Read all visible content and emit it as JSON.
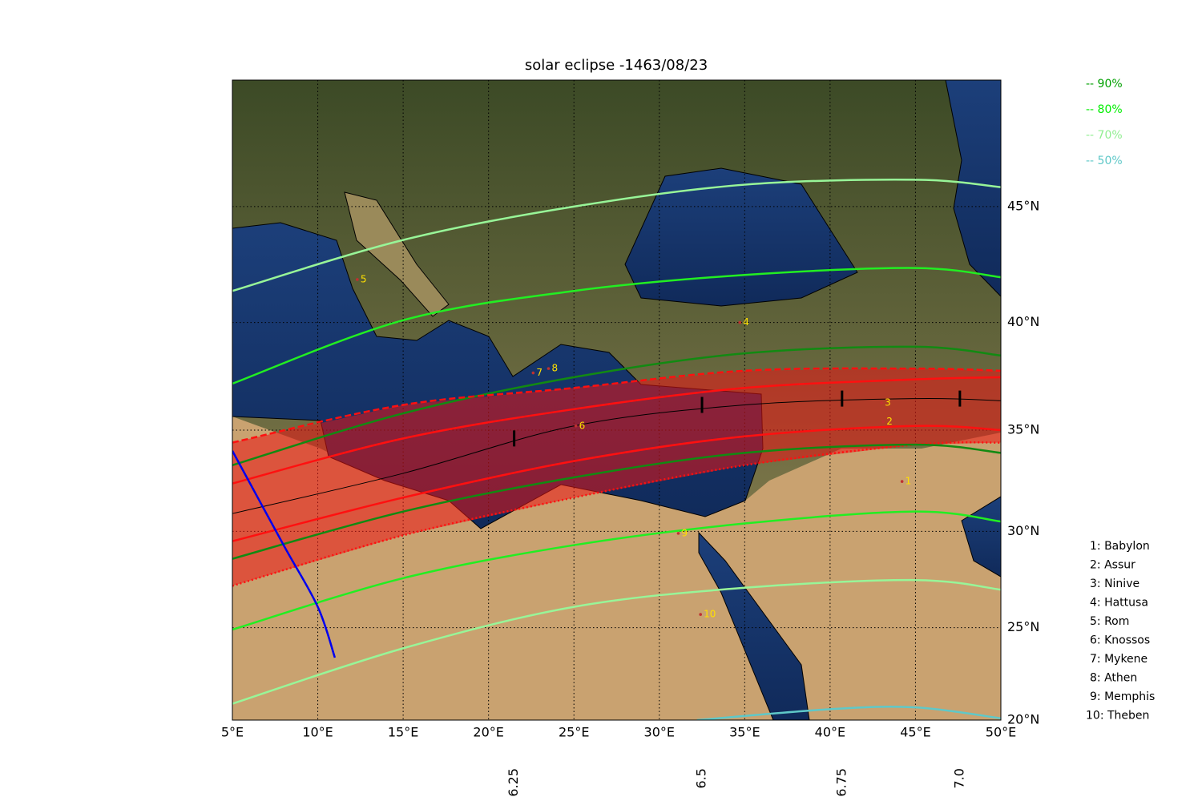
{
  "chart_data": {
    "type": "map",
    "title": "solar eclipse -1463/08/23",
    "xlim": [
      5,
      50
    ],
    "ylim": [
      20,
      50
    ],
    "xticks": [
      {
        "value": 5,
        "label": "5°E"
      },
      {
        "value": 10,
        "label": "10°E"
      },
      {
        "value": 15,
        "label": "15°E"
      },
      {
        "value": 20,
        "label": "20°E"
      },
      {
        "value": 25,
        "label": "25°E"
      },
      {
        "value": 30,
        "label": "30°E"
      },
      {
        "value": 35,
        "label": "35°E"
      },
      {
        "value": 40,
        "label": "40°E"
      },
      {
        "value": 45,
        "label": "45°E"
      },
      {
        "value": 50,
        "label": "50°E"
      }
    ],
    "yticks": [
      {
        "value": 20,
        "label": "20°N"
      },
      {
        "value": 25,
        "label": "25°N"
      },
      {
        "value": 30,
        "label": "30°N"
      },
      {
        "value": 35,
        "label": "35°N"
      },
      {
        "value": 40,
        "label": "40°N"
      },
      {
        "value": 45,
        "label": "45°N"
      }
    ],
    "grid": true,
    "legend": [
      {
        "label": "-- 90%",
        "color": "#00a000"
      },
      {
        "label": "-- 80%",
        "color": "#00ee00"
      },
      {
        "label": "-- 70%",
        "color": "#90ee90"
      },
      {
        "label": "-- 50%",
        "color": "#5fc8c8"
      }
    ],
    "curves": [
      {
        "color": "#98f598",
        "style": "solid",
        "lon": [
          5,
          15,
          25,
          35,
          45,
          50
        ],
        "lat": [
          41.4,
          43.6,
          45.0,
          45.9,
          46.1,
          45.8
        ]
      },
      {
        "color": "#22ee22",
        "style": "solid",
        "lon": [
          5,
          15,
          25,
          35,
          45,
          50
        ],
        "lat": [
          37.2,
          40.1,
          41.4,
          42.1,
          42.4,
          42.0
        ]
      },
      {
        "color": "#128a12",
        "style": "solid",
        "lon": [
          5,
          15,
          25,
          35,
          45,
          50
        ],
        "lat": [
          33.3,
          35.8,
          37.5,
          38.6,
          38.9,
          38.5
        ]
      },
      {
        "color": "#ff1010",
        "style": "dashed",
        "lon": [
          5,
          15,
          25,
          35,
          45,
          50
        ],
        "lat": [
          34.4,
          36.2,
          37.0,
          37.8,
          37.9,
          37.8
        ]
      },
      {
        "color": "#ff1010",
        "style": "solid",
        "lon": [
          5,
          15,
          25,
          35,
          45,
          50
        ],
        "lat": [
          32.4,
          34.6,
          36.0,
          37.0,
          37.4,
          37.5
        ]
      },
      {
        "color": "#000000",
        "style": "thin",
        "lon": [
          5,
          15,
          25,
          35,
          45,
          50
        ],
        "lat": [
          30.9,
          32.9,
          35.2,
          36.2,
          36.5,
          36.4
        ]
      },
      {
        "color": "#ff1010",
        "style": "solid",
        "lon": [
          5,
          15,
          25,
          35,
          45,
          50
        ],
        "lat": [
          29.5,
          31.7,
          33.5,
          34.7,
          35.2,
          35.0
        ]
      },
      {
        "color": "#ff1010",
        "style": "dotted",
        "lon": [
          5,
          15,
          25,
          35,
          45,
          50
        ],
        "lat": [
          27.2,
          29.8,
          31.7,
          33.3,
          34.3,
          34.4
        ]
      },
      {
        "color": "#128a12",
        "style": "solid",
        "lon": [
          5,
          15,
          25,
          35,
          45,
          50
        ],
        "lat": [
          28.6,
          31.0,
          32.7,
          33.9,
          34.3,
          33.9
        ]
      },
      {
        "color": "#22ee22",
        "style": "solid",
        "lon": [
          5,
          15,
          25,
          35,
          45,
          50
        ],
        "lat": [
          24.9,
          27.6,
          29.3,
          30.4,
          31.0,
          30.5
        ]
      },
      {
        "color": "#98f598",
        "style": "solid",
        "lon": [
          5,
          15,
          25,
          35,
          45,
          50
        ],
        "lat": [
          20.9,
          23.9,
          26.1,
          27.1,
          27.5,
          27.0
        ]
      },
      {
        "color": "#5fc8c8",
        "style": "solid",
        "lon": [
          32.2,
          40,
          45,
          50
        ],
        "lat": [
          20.0,
          20.6,
          20.7,
          20.1
        ]
      },
      {
        "color": "#0000ee",
        "style": "solid",
        "lon": [
          5,
          8,
          10,
          11
        ],
        "lat": [
          34.0,
          29.3,
          26.1,
          23.4
        ]
      }
    ],
    "time_marks": {
      "values": [
        6.25,
        6.5,
        6.75,
        {
          "value": 7.0,
          "label": "7.0"
        }
      ],
      "lon": [
        21.5,
        32.5,
        40.7,
        47.6
      ],
      "lat": [
        34.6,
        36.2,
        36.5,
        36.5
      ]
    },
    "cities": [
      {
        "label": "1: Babylon",
        "number": 1,
        "lon": 44.4,
        "lat": 32.5
      },
      {
        "label": "2: Assur",
        "number": 2,
        "lon": 43.3,
        "lat": 35.4
      },
      {
        "label": "3: Ninive",
        "number": 3,
        "lon": 43.2,
        "lat": 36.3
      },
      {
        "label": "4: Hattusa",
        "number": 4,
        "lon": 34.9,
        "lat": 40.0
      },
      {
        "label": "5: Rom",
        "number": 5,
        "lon": 12.5,
        "lat": 41.9
      },
      {
        "label": "6: Knossos",
        "number": 6,
        "lon": 25.3,
        "lat": 35.2
      },
      {
        "label": "7: Mykene",
        "number": 7,
        "lon": 22.8,
        "lat": 37.7
      },
      {
        "label": "8: Athen",
        "number": 8,
        "lon": 23.7,
        "lat": 37.9
      },
      {
        "label": "9: Memphis",
        "number": 9,
        "lon": 31.3,
        "lat": 29.9
      },
      {
        "label": "10: Theben",
        "number": 10,
        "lon": 32.6,
        "lat": 25.7
      }
    ]
  }
}
